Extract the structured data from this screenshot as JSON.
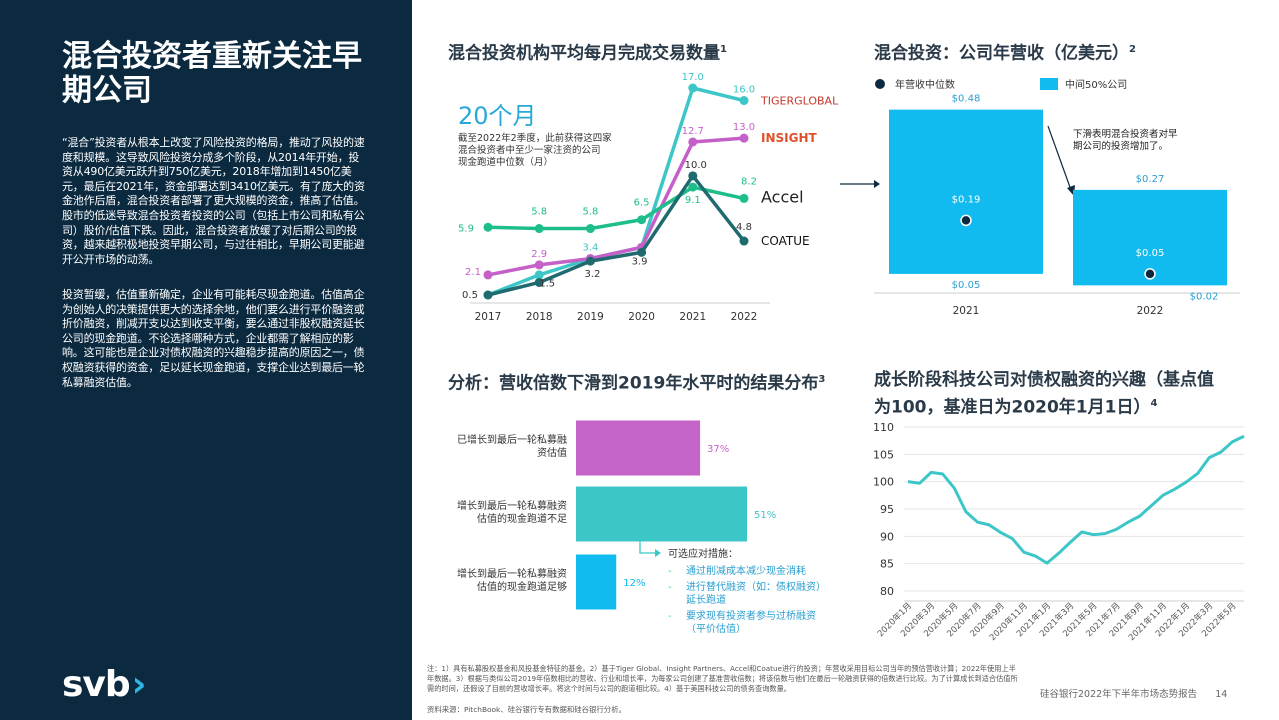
{
  "sidebar": {
    "title": "混合投资者重新关注早期公司",
    "para1": "“混合”投资者从根本上改变了风险投资的格局，推动了风投的速度和规模。这导致风险投资分成多个阶段，从2014年开始，投资从490亿美元跃升到750亿美元，2018年增加到1450亿美元，最后在2021年，资金部署达到3410亿美元。有了庞大的资金池作后盾，混合投资者部署了更大规模的资金，推高了估值。股市的低迷导致混合投资者投资的公司（包括上市公司和私有公司）股价/估值下跌。因此，混合投资者放缓了对后期公司的投资，越来越积极地投资早期公司，与过往相比，早期公司更能避开公开市场的动荡。",
    "para2": "投资暂缓，估值重新确定，企业有可能耗尽现金跑道。估值高企为创始人的决策提供更大的选择余地，他们要么进行平价融资或折价融资，削减开支以达到收支平衡，要么通过非股权融资延长公司的现金跑道。不论选择哪种方式，企业都需了解相应的影响。这可能也是企业对债权融资的兴趣稳步提高的原因之一，债权融资获得的资金，足以延长现金跑道，支撑企业达到最后一轮私募融资估值。",
    "logo": "svb",
    "logo_mark": "›"
  },
  "panel1": {
    "title": "混合投资机构平均每月完成交易数量",
    "sup": "1",
    "big_label": "20个月",
    "desc": [
      "截至2022年2季度，此前获得这四家",
      "混合投资者中至少一家注资的公司",
      "现金跑道中位数（月）"
    ]
  },
  "panel2": {
    "title": "混合投资：公司年营收（亿美元）",
    "sup": "2",
    "legend_median": "年营收中位数",
    "legend_mid50": "中间50%公司",
    "annotation": [
      "下滑表明混合投资者对早",
      "期公司的投资增加了。"
    ]
  },
  "panel3": {
    "title": "分析：营收倍数下滑到2019年水平时的结果分布",
    "sup": "3",
    "callout_title": "可选应对措施：",
    "callout_items": [
      [
        "通过削减成本减少现金消耗"
      ],
      [
        "进行替代融资（如：债权融资）",
        "延长跑道"
      ],
      [
        "要求现有投资者参与过桥融资",
        "（平价估值）"
      ]
    ]
  },
  "panel4": {
    "title_lines": [
      "成长阶段科技公司对债权融资的兴趣（基点值",
      "为100，基准日为2020年1月1日）"
    ],
    "sup": "4"
  },
  "footnote": "注：1）具有私募股权基金和风投基金特征的基金。2）基于Tiger Global、Insight Partners、Accel和Coatue进行的投资；年营收采用目标公司当年的预估营收计算；2022年使用上半年数据。3）根据与类似公司2019年倍数相比的营收、行业和增长率，为每家公司创建了基准营收倍数；将该倍数与他们在最后一轮融资获得的倍数进行比较。为了计算成长到适合估值所需的时间，还假设了目前的营收增长率。将这个时间与公司的跑道相比较。4）基于美国科技公司的债务查询数量。",
  "source": "资料来源：PitchBook、硅谷银行专有数据和硅谷银行分析。",
  "footer": {
    "report": "硅谷银行2022年下半年市场态势报告",
    "page": "14"
  },
  "colors": {
    "tiger": "#3cc6c8",
    "insight": "#c560c9",
    "accel": "#1dbd8c",
    "coatue": "#1f6a6e",
    "navy": "#0b2a40",
    "cyan": "#12bbef"
  },
  "chart_data": [
    {
      "type": "line",
      "title": "混合投资机构平均每月完成交易数量",
      "x": [
        "2017",
        "2018",
        "2019",
        "2020",
        "2021",
        "2022"
      ],
      "series": [
        {
          "name": "TIGERGLOBAL",
          "values": [
            0.5,
            2.1,
            3.4,
            4.3,
            17.0,
            16.0
          ],
          "labels": [
            "",
            "",
            "3.4",
            "",
            "17.0",
            "16.0"
          ]
        },
        {
          "name": "INSIGHT",
          "values": [
            2.1,
            2.9,
            3.4,
            4.3,
            12.7,
            13.0
          ],
          "labels": [
            "2.1",
            "2.9",
            "",
            "",
            "12.7",
            "13.0"
          ]
        },
        {
          "name": "Accel",
          "values": [
            5.9,
            5.8,
            5.8,
            6.5,
            9.1,
            8.2
          ],
          "labels": [
            "5.9",
            "5.8",
            "5.8",
            "6.5",
            "9.1",
            "8.2"
          ]
        },
        {
          "name": "COATUE",
          "values": [
            0.5,
            1.5,
            3.2,
            3.9,
            10.0,
            4.8
          ],
          "labels": [
            "0.5",
            "1.5",
            "3.2",
            "3.9",
            "10.0",
            "4.8"
          ]
        }
      ]
    },
    {
      "type": "bar",
      "title": "混合投资：公司年营收（亿美元）",
      "categories": [
        "2021",
        "2022"
      ],
      "median": [
        0.19,
        0.05
      ],
      "median_labels": [
        "$0.19",
        "$0.05"
      ],
      "p25": [
        0.05,
        0.02
      ],
      "p25_labels": [
        "$0.05",
        "$0.02"
      ],
      "p75": [
        0.48,
        0.27
      ],
      "p75_labels": [
        "$0.48",
        "$0.27"
      ],
      "ylim": [
        0,
        0.5
      ]
    },
    {
      "type": "bar",
      "orientation": "horizontal",
      "title": "分析：营收倍数下滑到2019年水平时的结果分布",
      "categories": [
        [
          "已增长到最后一轮私募融",
          "资估值"
        ],
        [
          "增长到最后一轮私募融资",
          "估值的现金跑道不足"
        ],
        [
          "增长到最后一轮私募融资",
          "估值的现金跑道足够"
        ]
      ],
      "values": [
        37,
        51,
        12
      ],
      "value_labels": [
        "37%",
        "51%",
        "12%"
      ],
      "colors": [
        "#c463c8",
        "#3cc6c8",
        "#12bbef"
      ]
    },
    {
      "type": "line",
      "title": "成长阶段科技公司对债权融资的兴趣（基点值为100，基准日为2020年1月1日）",
      "x_ticks": [
        "2020年1月",
        "2020年3月",
        "2020年5月",
        "2020年7月",
        "2020年9月",
        "2020年11月",
        "2021年1月",
        "2021年3月",
        "2021年5月",
        "2021年7月",
        "2021年9月",
        "2021年11月",
        "2022年1月",
        "2022年3月",
        "2022年5月"
      ],
      "y_ticks": [
        "110",
        "105",
        "100",
        "95",
        "90",
        "85",
        "80"
      ],
      "ylim": [
        80,
        110
      ],
      "x_count": 30,
      "values": [
        100.0,
        99.7,
        101.7,
        101.4,
        98.8,
        94.5,
        92.6,
        92.1,
        90.7,
        89.6,
        87.1,
        86.4,
        85.1,
        86.9,
        88.9,
        90.8,
        90.3,
        90.5,
        91.3,
        92.6,
        93.7,
        95.6,
        97.5,
        98.6,
        99.9,
        101.5,
        104.4,
        105.4,
        107.3,
        108.3
      ]
    }
  ]
}
